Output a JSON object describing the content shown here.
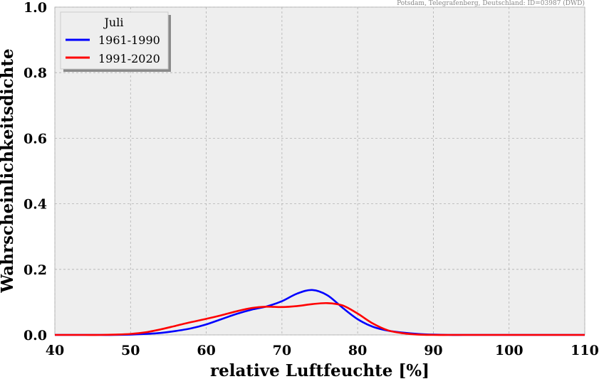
{
  "chart_data": {
    "type": "line",
    "source_note": "Potsdam, Telegrafenberg, Deutschland: ID=03987 (DWD)",
    "xlabel": "relative Luftfeuchte [%]",
    "ylabel": "Wahrscheinlichkeitsdichte",
    "xlim": [
      40,
      110
    ],
    "ylim": [
      0,
      1
    ],
    "xticks": [
      "40",
      "50",
      "60",
      "70",
      "80",
      "90",
      "100",
      "110"
    ],
    "yticks": [
      "0.0",
      "0.2",
      "0.4",
      "0.6",
      "0.8",
      "1.0"
    ],
    "grid": true,
    "legend": {
      "title": "Juli",
      "placement": "top-left"
    },
    "x": [
      40,
      42,
      44,
      46,
      48,
      50,
      52,
      54,
      56,
      58,
      60,
      62,
      64,
      66,
      68,
      70,
      72,
      74,
      76,
      78,
      80,
      82,
      84,
      86,
      88,
      90,
      92,
      94,
      96,
      98,
      100,
      102,
      104,
      106,
      108,
      110
    ],
    "series": [
      {
        "name": "1961-1990",
        "color": "#0000ff",
        "values": [
          0,
          0,
          0,
          0,
          0,
          0.001,
          0.003,
          0.006,
          0.012,
          0.02,
          0.032,
          0.048,
          0.064,
          0.077,
          0.087,
          0.103,
          0.126,
          0.137,
          0.121,
          0.083,
          0.048,
          0.025,
          0.013,
          0.007,
          0.003,
          0.001,
          0,
          0,
          0,
          0,
          0,
          0,
          0,
          0,
          0,
          0
        ]
      },
      {
        "name": "1991-2020",
        "color": "#ff0000",
        "values": [
          0,
          0,
          0,
          0,
          0.001,
          0.003,
          0.008,
          0.017,
          0.028,
          0.039,
          0.049,
          0.06,
          0.072,
          0.082,
          0.086,
          0.085,
          0.088,
          0.094,
          0.097,
          0.09,
          0.065,
          0.035,
          0.014,
          0.005,
          0.001,
          0,
          0,
          0,
          0,
          0,
          0,
          0,
          0,
          0,
          0,
          0
        ]
      }
    ]
  }
}
